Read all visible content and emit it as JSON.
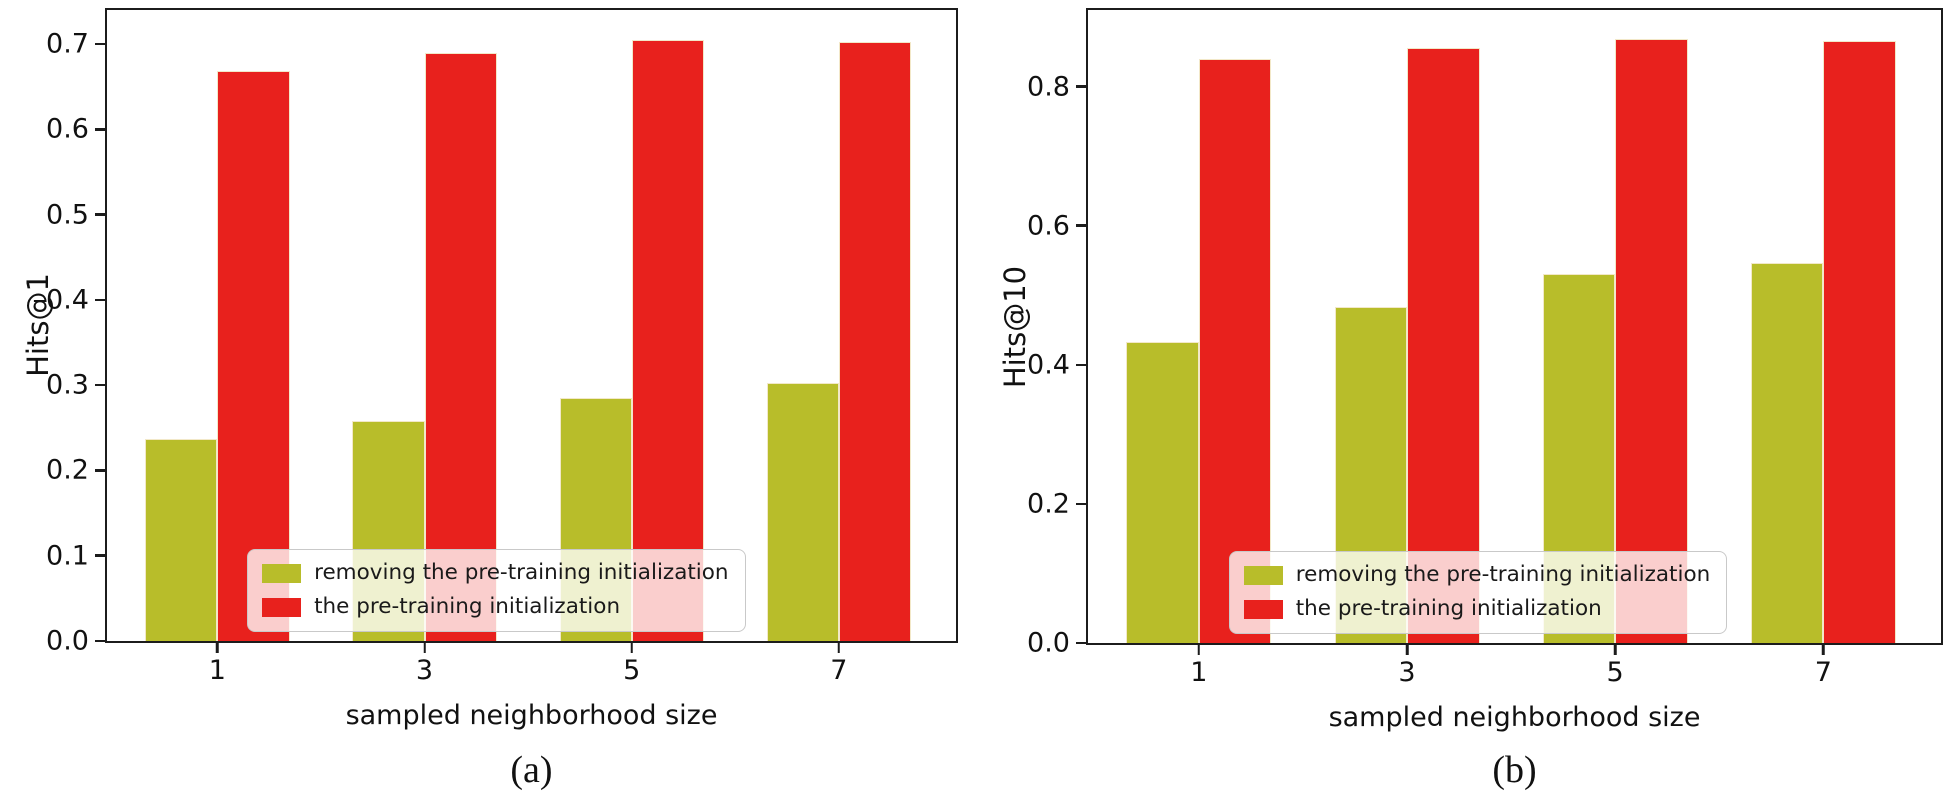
{
  "figure": {
    "xlabel": "sampled neighborhood size",
    "background": "#ffffff",
    "frame_color": "#1c1c1c",
    "legend": {
      "entries": [
        {
          "label": "removing the pre-training initialization",
          "color": "#b8bd2a",
          "swatch_icon": "olive-square-swatch"
        },
        {
          "label": "the pre-training initialization",
          "color": "#e8211d",
          "swatch_icon": "red-square-swatch"
        }
      ],
      "position": "lower left inside axes",
      "background_alpha": 0.78
    }
  },
  "chart_data": [
    {
      "type": "bar",
      "panel_caption": "(a)",
      "ylabel": "Hits@1",
      "xlabel": "sampled neighborhood size",
      "categories": [
        1,
        3,
        5,
        7
      ],
      "series": [
        {
          "name": "removing the pre-training initialization",
          "color": "#b8bd2a",
          "values": [
            0.237,
            0.258,
            0.285,
            0.302
          ]
        },
        {
          "name": "the pre-training initialization",
          "color": "#e8211d",
          "values": [
            0.669,
            0.69,
            0.705,
            0.703
          ]
        }
      ],
      "ylim": [
        0,
        0.74
      ],
      "yticks": [
        "0.0",
        "0.1",
        "0.2",
        "0.3",
        "0.4",
        "0.5",
        "0.6",
        "0.7"
      ],
      "grid": false,
      "legend_position": "lower left inside"
    },
    {
      "type": "bar",
      "panel_caption": "(b)",
      "ylabel": "Hits@10",
      "xlabel": "sampled neighborhood size",
      "categories": [
        1,
        3,
        5,
        7
      ],
      "series": [
        {
          "name": "removing the pre-training initialization",
          "color": "#b8bd2a",
          "values": [
            0.433,
            0.483,
            0.53,
            0.547
          ]
        },
        {
          "name": "the pre-training initialization",
          "color": "#e8211d",
          "values": [
            0.84,
            0.856,
            0.868,
            0.866
          ]
        }
      ],
      "ylim": [
        0,
        0.91
      ],
      "yticks": [
        "0.0",
        "0.2",
        "0.4",
        "0.6",
        "0.8"
      ],
      "grid": false,
      "legend_position": "lower left inside"
    }
  ]
}
